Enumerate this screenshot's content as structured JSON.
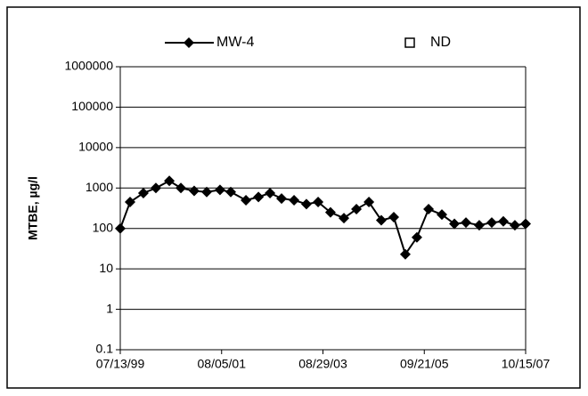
{
  "chart_data": {
    "type": "line",
    "y_label": "MTBE, µg/l",
    "x": [
      "07/13/99",
      "09/24/99",
      "01/01/00",
      "04/03/00",
      "07/12/00",
      "10/06/00",
      "01/13/01",
      "04/16/01",
      "07/24/01",
      "10/12/01",
      "02/02/02",
      "05/06/02",
      "07/31/02",
      "10/25/02",
      "01/26/03",
      "04/28/03",
      "07/24/03",
      "10/24/03",
      "02/01/04",
      "05/04/04",
      "08/05/04",
      "11/05/04",
      "02/06/05",
      "05/03/05",
      "07/28/05",
      "10/23/05",
      "01/30/06",
      "05/03/06",
      "07/28/06",
      "11/04/06",
      "02/05/07",
      "05/02/07",
      "07/27/07",
      "10/15/07"
    ],
    "series": [
      {
        "name": "MW-4",
        "color": "#000000",
        "marker": "diamond",
        "values": [
          100,
          450,
          750,
          1000,
          1500,
          1000,
          850,
          800,
          900,
          800,
          500,
          600,
          750,
          550,
          500,
          400,
          450,
          250,
          180,
          300,
          450,
          160,
          190,
          23,
          60,
          300,
          220,
          130,
          140,
          120,
          140,
          150,
          120,
          130
        ]
      },
      {
        "name": "ND",
        "color": "#000000",
        "marker": "open-square",
        "values": [
          null,
          null,
          null,
          null,
          null,
          null,
          null,
          null,
          null,
          null,
          null,
          null,
          null,
          null,
          null,
          null,
          null,
          null,
          null,
          null,
          null,
          null,
          null,
          null,
          null,
          null,
          null,
          null,
          null,
          null,
          null,
          null,
          null,
          null
        ]
      }
    ],
    "xlim": [
      "07/13/99",
      "10/15/07"
    ],
    "xticks": [
      "07/13/99",
      "08/05/01",
      "08/29/03",
      "09/21/05",
      "10/15/07"
    ],
    "ylim": [
      0.1,
      1000000
    ],
    "yticks": [
      0.1,
      1,
      10,
      100,
      1000,
      10000,
      100000,
      1000000
    ],
    "log_y": true,
    "grid": true,
    "legend": "top"
  }
}
